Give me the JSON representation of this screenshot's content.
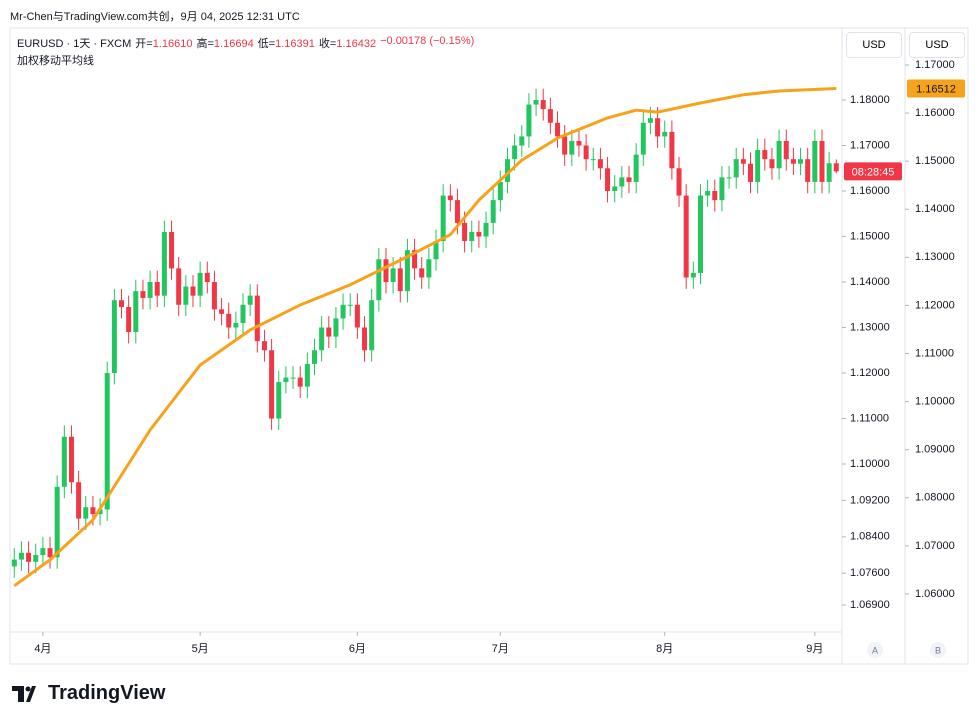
{
  "attribution": "Mr-Chen与TradingView.com共创，9月 04, 2025 12:31 UTC",
  "brand": "TradingView",
  "currency_buttons": [
    "USD",
    "USD"
  ],
  "scale_buttons": [
    "A",
    "B"
  ],
  "chart_data": {
    "type": "candlestick",
    "title": "EURUSD · 1天 · FXCM",
    "legend": [
      {
        "label": "开=",
        "value": "1.16610"
      },
      {
        "label": "高=",
        "value": "1.16694"
      },
      {
        "label": "低=",
        "value": "1.16391"
      },
      {
        "label": "收=",
        "value": "1.16432"
      }
    ],
    "change": "−0.00178 (−0.15%)",
    "countdown": "08:28:45",
    "grid": false,
    "ylim": [
      1.06352,
      1.19363
    ],
    "yticks": [
      {
        "value": 1.18,
        "label": "1.18000"
      },
      {
        "value": 1.17,
        "label": "1.17000"
      },
      {
        "value": 1.16,
        "label": "1.16000"
      },
      {
        "value": 1.15,
        "label": "1.15000"
      },
      {
        "value": 1.14,
        "label": "1.14000"
      },
      {
        "value": 1.13,
        "label": "1.13000"
      },
      {
        "value": 1.12,
        "label": "1.12000"
      },
      {
        "value": 1.11,
        "label": "1.11000"
      },
      {
        "value": 1.1,
        "label": "1.10000"
      },
      {
        "value": 1.092,
        "label": "1.09200"
      },
      {
        "value": 1.084,
        "label": "1.08400"
      },
      {
        "value": 1.076,
        "label": "1.07600"
      },
      {
        "value": 1.069,
        "label": "1.06900"
      }
    ],
    "y2lim": [
      1.05251,
      1.17561
    ],
    "y2ticks": [
      {
        "value": 1.17,
        "label": "1.17000"
      },
      {
        "value": 1.16,
        "label": "1.16000"
      },
      {
        "value": 1.15,
        "label": "1.15000"
      },
      {
        "value": 1.14,
        "label": "1.14000"
      },
      {
        "value": 1.13,
        "label": "1.13000"
      },
      {
        "value": 1.12,
        "label": "1.12000"
      },
      {
        "value": 1.11,
        "label": "1.11000"
      },
      {
        "value": 1.1,
        "label": "1.10000"
      },
      {
        "value": 1.09,
        "label": "1.09000"
      },
      {
        "value": 1.08,
        "label": "1.08000"
      },
      {
        "value": 1.07,
        "label": "1.07000"
      },
      {
        "value": 1.06,
        "label": "1.06000"
      }
    ],
    "xlim": [
      -0.6,
      115.8
    ],
    "xticks": [
      {
        "value": 4,
        "label": "4月"
      },
      {
        "value": 26,
        "label": "5月"
      },
      {
        "value": 48,
        "label": "6月"
      },
      {
        "value": 68,
        "label": "7月"
      },
      {
        "value": 91,
        "label": "8月"
      },
      {
        "value": 112,
        "label": "9月"
      }
    ],
    "series": [
      {
        "name": "EURUSD",
        "up_color": "#22c55e",
        "down_color": "#f23645",
        "open": [
          1.0775,
          1.079,
          1.0805,
          1.0785,
          1.08,
          1.0815,
          1.0795,
          1.095,
          1.106,
          1.096,
          1.088,
          1.0905,
          1.089,
          1.09,
          1.12,
          1.136,
          1.1345,
          1.129,
          1.138,
          1.1365,
          1.14,
          1.137,
          1.151,
          1.143,
          1.135,
          1.139,
          1.137,
          1.142,
          1.14,
          1.134,
          1.133,
          1.13,
          1.131,
          1.135,
          1.137,
          1.127,
          1.125,
          1.11,
          1.118,
          1.119,
          1.119,
          1.117,
          1.122,
          1.125,
          1.13,
          1.128,
          1.132,
          1.135,
          1.135,
          1.13,
          1.125,
          1.136,
          1.145,
          1.14,
          1.143,
          1.138,
          1.147,
          1.143,
          1.141,
          1.145,
          1.149,
          1.159,
          1.158,
          1.153,
          1.149,
          1.151,
          1.15,
          1.153,
          1.158,
          1.162,
          1.167,
          1.17,
          1.172,
          1.179,
          1.18,
          1.178,
          1.175,
          1.172,
          1.168,
          1.171,
          1.17,
          1.167,
          1.167,
          1.165,
          1.16,
          1.161,
          1.163,
          1.162,
          1.168,
          1.175,
          1.176,
          1.172,
          1.173,
          1.165,
          1.159,
          1.141,
          1.142,
          1.159,
          1.16,
          1.158,
          1.163,
          1.163,
          1.167,
          1.166,
          1.162,
          1.169,
          1.167,
          1.165,
          1.171,
          1.167,
          1.166,
          1.167,
          1.162,
          1.171,
          1.162,
          1.1661
        ],
        "high": [
          1.0815,
          1.083,
          1.083,
          1.0825,
          1.084,
          1.084,
          1.0975,
          1.1085,
          1.1085,
          1.0985,
          1.093,
          1.093,
          1.0925,
          1.1225,
          1.1385,
          1.1385,
          1.137,
          1.1405,
          1.1405,
          1.1425,
          1.1425,
          1.1535,
          1.1535,
          1.1455,
          1.1415,
          1.1415,
          1.1445,
          1.1445,
          1.1425,
          1.1365,
          1.1355,
          1.1335,
          1.1375,
          1.1395,
          1.1395,
          1.1295,
          1.1275,
          1.1205,
          1.1215,
          1.1215,
          1.1215,
          1.1245,
          1.1275,
          1.1325,
          1.1325,
          1.1345,
          1.1375,
          1.1375,
          1.1375,
          1.1325,
          1.1385,
          1.1475,
          1.1475,
          1.1455,
          1.1455,
          1.1495,
          1.1495,
          1.1455,
          1.1475,
          1.1515,
          1.1615,
          1.1615,
          1.1605,
          1.1555,
          1.1535,
          1.1535,
          1.1555,
          1.1605,
          1.1645,
          1.1695,
          1.1725,
          1.1745,
          1.1815,
          1.1825,
          1.1825,
          1.1805,
          1.1775,
          1.1745,
          1.1735,
          1.1735,
          1.1725,
          1.1695,
          1.1695,
          1.1675,
          1.1635,
          1.1655,
          1.1655,
          1.1705,
          1.1775,
          1.1785,
          1.1785,
          1.1755,
          1.1755,
          1.1675,
          1.1615,
          1.1445,
          1.1615,
          1.1625,
          1.1625,
          1.1655,
          1.1655,
          1.1695,
          1.1695,
          1.1685,
          1.1715,
          1.1715,
          1.1695,
          1.1735,
          1.1735,
          1.1695,
          1.1695,
          1.1695,
          1.1735,
          1.1735,
          1.1686,
          1.16694
        ],
        "low": [
          1.075,
          1.0765,
          1.076,
          1.076,
          1.0775,
          1.077,
          1.077,
          1.0925,
          1.0935,
          1.0855,
          1.0855,
          1.0865,
          1.0865,
          1.0875,
          1.1175,
          1.132,
          1.1265,
          1.1265,
          1.134,
          1.134,
          1.1345,
          1.1345,
          1.1405,
          1.1325,
          1.1325,
          1.1345,
          1.1345,
          1.1375,
          1.1315,
          1.1305,
          1.1275,
          1.1275,
          1.1285,
          1.1325,
          1.1245,
          1.1225,
          1.1075,
          1.1075,
          1.1155,
          1.1165,
          1.1145,
          1.1145,
          1.1195,
          1.1225,
          1.1255,
          1.1255,
          1.1295,
          1.1325,
          1.1275,
          1.1225,
          1.1225,
          1.1335,
          1.1375,
          1.1375,
          1.1355,
          1.1355,
          1.1405,
          1.1385,
          1.1385,
          1.1425,
          1.1465,
          1.1555,
          1.1505,
          1.1465,
          1.1465,
          1.1475,
          1.1475,
          1.1505,
          1.1555,
          1.1595,
          1.1645,
          1.1675,
          1.1695,
          1.1765,
          1.1755,
          1.1725,
          1.1695,
          1.1655,
          1.1655,
          1.1675,
          1.1645,
          1.1645,
          1.1625,
          1.1575,
          1.1575,
          1.1585,
          1.1595,
          1.1595,
          1.1655,
          1.1725,
          1.1695,
          1.1695,
          1.1625,
          1.1565,
          1.1385,
          1.1385,
          1.1395,
          1.1565,
          1.1555,
          1.1555,
          1.1605,
          1.1605,
          1.1635,
          1.1595,
          1.1595,
          1.1645,
          1.1625,
          1.1625,
          1.1645,
          1.1635,
          1.1635,
          1.1595,
          1.1595,
          1.1595,
          1.1595,
          1.16391
        ],
        "close": [
          1.079,
          1.0805,
          1.0785,
          1.08,
          1.0815,
          1.0795,
          1.095,
          1.106,
          1.096,
          1.088,
          1.0905,
          1.089,
          1.09,
          1.12,
          1.136,
          1.1345,
          1.129,
          1.138,
          1.1365,
          1.14,
          1.137,
          1.151,
          1.143,
          1.135,
          1.139,
          1.137,
          1.142,
          1.14,
          1.134,
          1.133,
          1.13,
          1.131,
          1.135,
          1.137,
          1.127,
          1.125,
          1.11,
          1.118,
          1.119,
          1.119,
          1.117,
          1.122,
          1.125,
          1.13,
          1.128,
          1.132,
          1.135,
          1.135,
          1.13,
          1.125,
          1.136,
          1.145,
          1.14,
          1.143,
          1.138,
          1.147,
          1.143,
          1.141,
          1.145,
          1.149,
          1.159,
          1.158,
          1.153,
          1.149,
          1.151,
          1.15,
          1.153,
          1.158,
          1.162,
          1.167,
          1.17,
          1.172,
          1.179,
          1.18,
          1.178,
          1.175,
          1.172,
          1.168,
          1.171,
          1.17,
          1.167,
          1.167,
          1.165,
          1.16,
          1.161,
          1.163,
          1.162,
          1.168,
          1.175,
          1.176,
          1.172,
          1.173,
          1.165,
          1.159,
          1.141,
          1.142,
          1.159,
          1.16,
          1.158,
          1.163,
          1.163,
          1.167,
          1.166,
          1.162,
          1.169,
          1.167,
          1.165,
          1.171,
          1.167,
          1.166,
          1.167,
          1.162,
          1.171,
          1.162,
          1.1661,
          1.16432
        ]
      },
      {
        "name": "加权移动平均线",
        "color": "#f7a21b",
        "axis": "y2",
        "x": [
          0,
          5,
          11,
          19,
          26,
          33,
          40,
          47,
          54,
          61,
          65,
          71,
          76,
          83,
          87,
          90,
          96,
          102,
          107,
          115
        ],
        "values": [
          1.0617,
          1.0671,
          1.0754,
          1.0941,
          1.1076,
          1.1149,
          1.1201,
          1.1243,
          1.1294,
          1.1347,
          1.1419,
          1.1502,
          1.1548,
          1.159,
          1.1606,
          1.1602,
          1.1621,
          1.1638,
          1.1646,
          1.16512
        ],
        "last_value_label": "1.16512"
      }
    ]
  }
}
